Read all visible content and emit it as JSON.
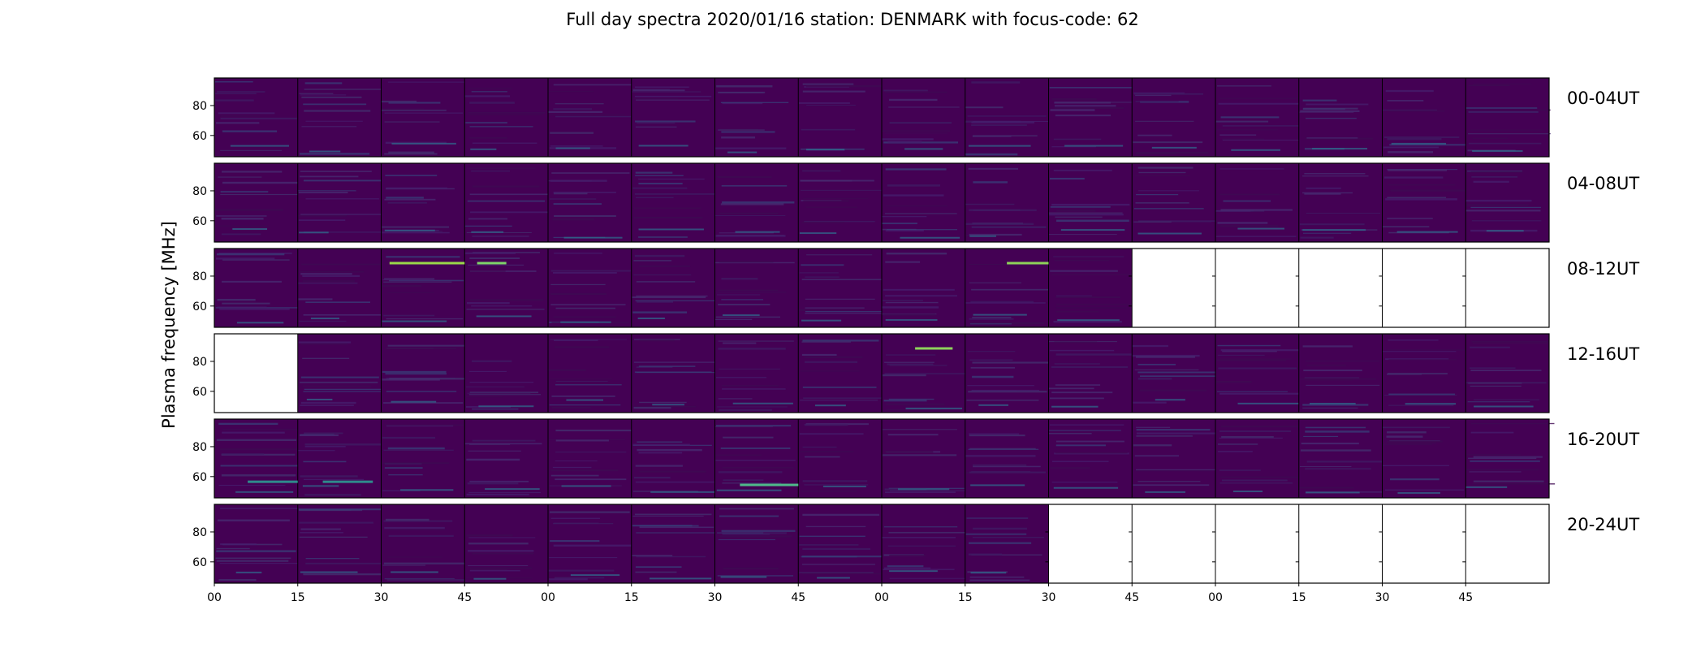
{
  "chart_data": {
    "type": "heatmap",
    "title": "Full day spectra 2020/01/16 station: DENMARK with focus-code: 62",
    "ylabel": "Plasma frequency [MHz]",
    "xlabel": "",
    "colormap": "viridis",
    "background_color": "#440154",
    "y_ticks": [
      "80",
      "60"
    ],
    "x_ticks": [
      "00",
      "15",
      "30",
      "45",
      "00",
      "15",
      "30",
      "45",
      "00",
      "15",
      "30",
      "45",
      "00",
      "15",
      "30",
      "45"
    ],
    "panels_per_row": 16,
    "rows": [
      {
        "label": "00-04UT",
        "panels_with_data": 16
      },
      {
        "label": "04-08UT",
        "panels_with_data": 16
      },
      {
        "label": "08-12UT",
        "panels_with_data": 11
      },
      {
        "label": "12-16UT",
        "panels_with_data": 15,
        "empty_panels": [
          0
        ]
      },
      {
        "label": "16-20UT",
        "panels_with_data": 16
      },
      {
        "label": "20-24UT",
        "panels_with_data": 10
      }
    ]
  }
}
